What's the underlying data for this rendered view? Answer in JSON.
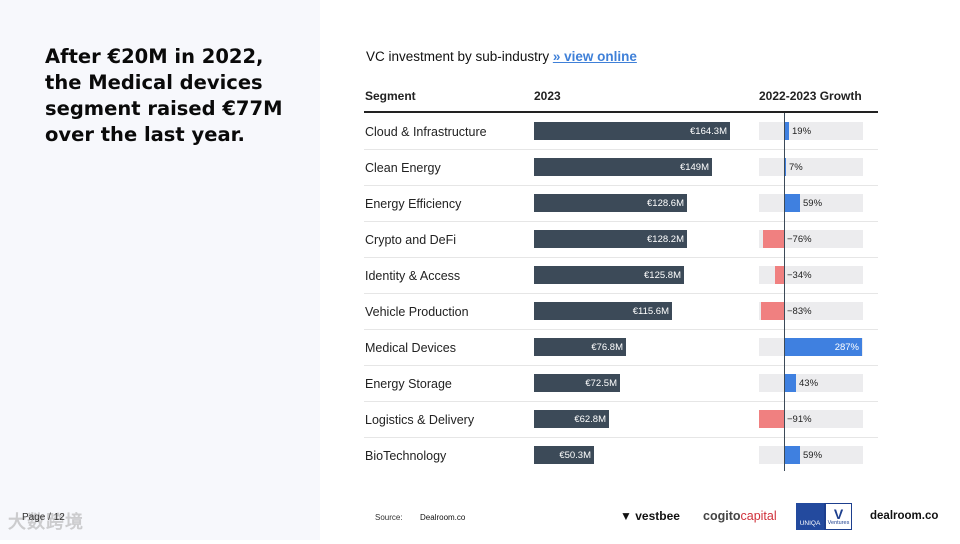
{
  "headline": "After €20M in 2022, the Medical devices segment raised €77M over the last year.",
  "page_label": "Page / 12",
  "watermark": "大数跨境",
  "chart_title": "VC investment by sub-industry",
  "chart_link": "» view online",
  "colors": {
    "bar": "#3c4a58",
    "growth_positive": "#3f80e0",
    "growth_negative": "#f08080",
    "track": "#ececee"
  },
  "chart_data": {
    "type": "table",
    "columns": [
      "Segment",
      "2023",
      "2022-2023 Growth"
    ],
    "rows": [
      {
        "segment": "Cloud & Infrastructure",
        "value": 164.3,
        "value_label": "€164.3M",
        "growth": 19,
        "growth_label": "19%"
      },
      {
        "segment": "Clean Energy",
        "value": 149.0,
        "value_label": "€149M",
        "growth": 7,
        "growth_label": "7%"
      },
      {
        "segment": "Energy Efficiency",
        "value": 128.6,
        "value_label": "€128.6M",
        "growth": 59,
        "growth_label": "59%"
      },
      {
        "segment": "Crypto and DeFi",
        "value": 128.2,
        "value_label": "€128.2M",
        "growth": -76,
        "growth_label": "−76%"
      },
      {
        "segment": "Identity & Access",
        "value": 125.8,
        "value_label": "€125.8M",
        "growth": -34,
        "growth_label": "−34%"
      },
      {
        "segment": "Vehicle Production",
        "value": 115.6,
        "value_label": "€115.6M",
        "growth": -83,
        "growth_label": "−83%"
      },
      {
        "segment": "Medical Devices",
        "value": 76.8,
        "value_label": "€76.8M",
        "growth": 287,
        "growth_label": "287%"
      },
      {
        "segment": "Energy Storage",
        "value": 72.5,
        "value_label": "€72.5M",
        "growth": 43,
        "growth_label": "43%"
      },
      {
        "segment": "Logistics & Delivery",
        "value": 62.8,
        "value_label": "€62.8M",
        "growth": -91,
        "growth_label": "−91%"
      },
      {
        "segment": "BioTechnology",
        "value": 50.3,
        "value_label": "€50.3M",
        "growth": 59,
        "growth_label": "59%"
      }
    ],
    "value_unit": "€M",
    "growth_unit": "%"
  },
  "footer": {
    "source_label": "Source:",
    "source_value": "Dealroom.co",
    "logos": {
      "vestbee": "vestbee",
      "cogito_a": "cogito",
      "cogito_b": "capital",
      "uniqa": "UNIQA",
      "uniqa_mark": "V",
      "uniqa_sub": "Ventures",
      "dealroom": "dealroom.co"
    }
  }
}
